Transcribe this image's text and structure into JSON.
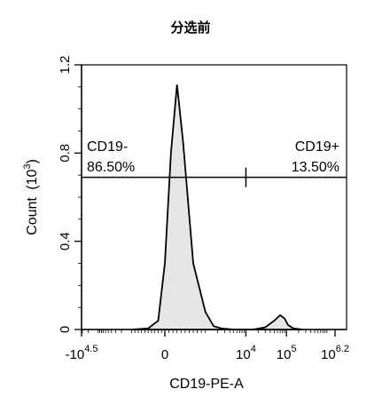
{
  "chart_data": {
    "type": "area",
    "title": "分选前",
    "xlabel": "CD19-PE-A",
    "ylabel": "Count",
    "ylabel_unit_base": "10",
    "ylabel_unit_exp": "3",
    "ylim": [
      0,
      1.2
    ],
    "y_ticks": [
      {
        "value": 0,
        "label": "0"
      },
      {
        "value": 0.4,
        "label": "0.4"
      },
      {
        "value": 0.8,
        "label": "0.8"
      },
      {
        "value": 1.2,
        "label": "1.2"
      }
    ],
    "x_scale": "biexponential",
    "x_ticks": [
      {
        "base": "-10",
        "exp": "4.5"
      },
      {
        "base": "0",
        "exp": ""
      },
      {
        "base": "10",
        "exp": "4"
      },
      {
        "base": "10",
        "exp": "5"
      },
      {
        "base": "10",
        "exp": "6.2"
      }
    ],
    "series": [
      {
        "points": [
          [
            -1000,
            0
          ],
          [
            -500,
            0.005
          ],
          [
            -200,
            0.04
          ],
          [
            0,
            0.3
          ],
          [
            150,
            0.8
          ],
          [
            300,
            1.11
          ],
          [
            450,
            0.85
          ],
          [
            700,
            0.3
          ],
          [
            1000,
            0.08
          ],
          [
            1600,
            0.015
          ],
          [
            2500,
            0.005
          ],
          [
            5000,
            0
          ],
          [
            15000,
            0
          ],
          [
            30000,
            0.01
          ],
          [
            50000,
            0.04
          ],
          [
            70000,
            0.065
          ],
          [
            90000,
            0.05
          ],
          [
            110000,
            0.02
          ],
          [
            150000,
            0.005
          ],
          [
            250000,
            0
          ]
        ]
      }
    ],
    "gates": [
      {
        "name": "CD19-",
        "percent": "86.50%",
        "y": 0.69
      },
      {
        "name": "CD19+",
        "percent": "13.50%",
        "y": 0.69
      }
    ],
    "gate_divider_x": 10000
  }
}
